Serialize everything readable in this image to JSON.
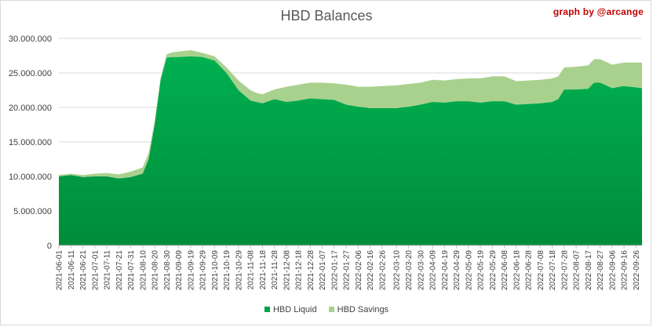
{
  "credit": "graph by @arcange",
  "chart_data": {
    "type": "area",
    "stacked": true,
    "title": "HBD Balances",
    "xlabel": "",
    "ylabel": "",
    "ylim": [
      0,
      30000000
    ],
    "yticks": [
      0,
      5000000,
      10000000,
      15000000,
      20000000,
      25000000,
      30000000
    ],
    "ytick_labels": [
      "0",
      "5.000.000",
      "10.000.000",
      "15.000.000",
      "20.000.000",
      "25.000.000",
      "30.000.000"
    ],
    "grid": "horizontal",
    "legend_position": "bottom",
    "x_tick_labels": [
      "2021-06-01",
      "2021-06-11",
      "2021-06-21",
      "2021-07-01",
      "2021-07-11",
      "2021-07-21",
      "2021-07-31",
      "2021-08-10",
      "2021-08-20",
      "2021-08-30",
      "2021-09-09",
      "2021-09-19",
      "2021-09-29",
      "2021-10-09",
      "2021-10-19",
      "2021-10-29",
      "2021-11-08",
      "2021-11-18",
      "2021-11-28",
      "2021-12-08",
      "2021-12-18",
      "2021-12-28",
      "2022-01-07",
      "2022-01-17",
      "2022-01-27",
      "2022-02-06",
      "2022-02-16",
      "2022-02-26",
      "2022-03-10",
      "2022-03-20",
      "2022-03-30",
      "2022-04-09",
      "2022-04-19",
      "2022-04-29",
      "2022-05-09",
      "2022-05-19",
      "2022-05-29",
      "2022-06-08",
      "2022-06-18",
      "2022-06-28",
      "2022-07-08",
      "2022-07-18",
      "2022-07-28",
      "2022-08-07",
      "2022-08-17",
      "2022-08-27",
      "2022-09-06",
      "2022-09-16",
      "2022-09-26"
    ],
    "x": [
      "2021-06-01",
      "2021-06-11",
      "2021-06-21",
      "2021-07-01",
      "2021-07-11",
      "2021-07-21",
      "2021-07-31",
      "2021-08-10",
      "2021-08-15",
      "2021-08-20",
      "2021-08-25",
      "2021-08-30",
      "2021-09-04",
      "2021-09-09",
      "2021-09-19",
      "2021-09-29",
      "2021-10-09",
      "2021-10-19",
      "2021-10-29",
      "2021-11-08",
      "2021-11-13",
      "2021-11-18",
      "2021-11-28",
      "2021-12-08",
      "2021-12-18",
      "2021-12-28",
      "2022-01-07",
      "2022-01-17",
      "2022-01-27",
      "2022-02-06",
      "2022-02-16",
      "2022-02-26",
      "2022-03-10",
      "2022-03-20",
      "2022-03-30",
      "2022-04-09",
      "2022-04-19",
      "2022-04-29",
      "2022-05-09",
      "2022-05-19",
      "2022-05-29",
      "2022-06-08",
      "2022-06-18",
      "2022-06-28",
      "2022-07-08",
      "2022-07-18",
      "2022-07-23",
      "2022-07-28",
      "2022-08-07",
      "2022-08-17",
      "2022-08-22",
      "2022-08-27",
      "2022-09-06",
      "2022-09-16",
      "2022-09-26",
      "2022-10-01"
    ],
    "series": [
      {
        "name": "HBD Liquid",
        "color": "#00a14b",
        "values": [
          10000000,
          10200000,
          9900000,
          10000000,
          10000000,
          9700000,
          9900000,
          10400000,
          12500000,
          17500000,
          24000000,
          27200000,
          27300000,
          27300000,
          27400000,
          27300000,
          26800000,
          25000000,
          22500000,
          21000000,
          20800000,
          20600000,
          21200000,
          20800000,
          21000000,
          21300000,
          21200000,
          21100000,
          20400000,
          20100000,
          19900000,
          19900000,
          19900000,
          20100000,
          20400000,
          20800000,
          20700000,
          20900000,
          20900000,
          20700000,
          20900000,
          20900000,
          20400000,
          20500000,
          20600000,
          20800000,
          21200000,
          22600000,
          22600000,
          22700000,
          23600000,
          23600000,
          22800000,
          23100000,
          22900000,
          22800000
        ]
      },
      {
        "name": "HBD Savings",
        "color": "#a9d18e",
        "values": [
          200000,
          200000,
          300000,
          400000,
          500000,
          600000,
          800000,
          900000,
          900000,
          500000,
          300000,
          500000,
          700000,
          800000,
          900000,
          600000,
          600000,
          800000,
          1400000,
          1500000,
          1300000,
          1300000,
          1400000,
          2200000,
          2300000,
          2300000,
          2400000,
          2400000,
          2900000,
          2900000,
          3100000,
          3200000,
          3300000,
          3300000,
          3200000,
          3200000,
          3200000,
          3200000,
          3300000,
          3500000,
          3600000,
          3600000,
          3400000,
          3400000,
          3400000,
          3400000,
          3300000,
          3200000,
          3300000,
          3400000,
          3400000,
          3400000,
          3400000,
          3400000,
          3600000,
          3700000
        ]
      }
    ]
  }
}
